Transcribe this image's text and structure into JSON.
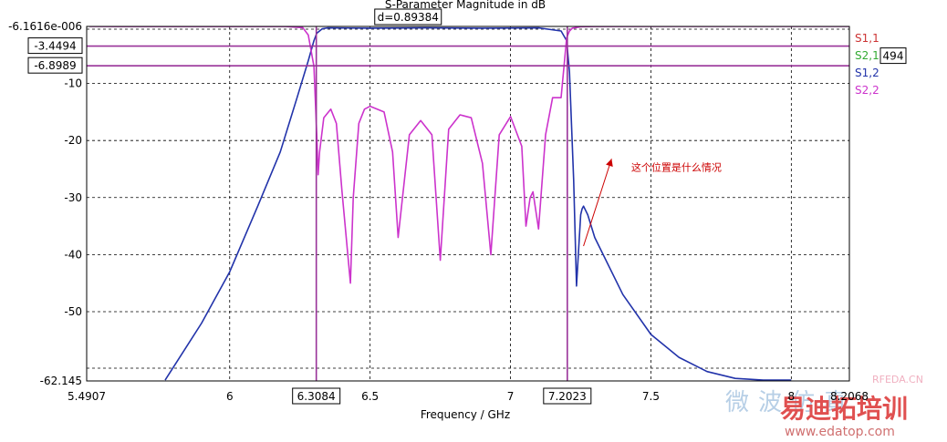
{
  "chart_data": {
    "type": "line",
    "title": "S-Parameter Magnitude in dB",
    "xlabel": "Frequency / GHz",
    "ylabel": "",
    "xlim": [
      5.4907,
      8.2068
    ],
    "ylim": [
      -62.145,
      -6.1616e-06
    ],
    "x_ticks": [
      {
        "value": 6,
        "label": "6"
      },
      {
        "value": 6.5,
        "label": "6.5"
      },
      {
        "value": 7,
        "label": "7"
      },
      {
        "value": 7.5,
        "label": "7.5"
      },
      {
        "value": 8,
        "label": "8"
      }
    ],
    "x_edge_labels": {
      "left": "5.4907",
      "right": "8.2068"
    },
    "y_ticks": [
      {
        "value": -10,
        "label": "-10"
      },
      {
        "value": -20,
        "label": "-20"
      },
      {
        "value": -30,
        "label": "-30"
      },
      {
        "value": -40,
        "label": "-40"
      },
      {
        "value": -50,
        "label": "-50"
      }
    ],
    "y_edge_labels": {
      "top": "-6.1616e-006",
      "bottom": "-62.145"
    },
    "grid": true,
    "legend_position": "right",
    "legend": [
      {
        "label": "S1,1",
        "color": "#cc3333"
      },
      {
        "label": "S2,1",
        "color": "#33aa33"
      },
      {
        "label": "S1,2",
        "color": "#2233aa"
      },
      {
        "label": "S2,2",
        "color": "#cc33cc"
      }
    ],
    "markers": {
      "vertical": [
        {
          "value": 6.3084,
          "label": "6.3084"
        },
        {
          "value": 7.2023,
          "label": "7.2023"
        }
      ],
      "horizontal": [
        {
          "value": -3.4494,
          "label": "-3.4494"
        },
        {
          "value": -6.8989,
          "label": "-6.8989"
        }
      ],
      "delta_label": "d=0.89384",
      "right_partial_label": "494",
      "color": "#993399"
    },
    "series": [
      {
        "name": "S1,2",
        "color": "#2233aa",
        "x": [
          5.77,
          5.9,
          6.0,
          6.1,
          6.18,
          6.24,
          6.28,
          6.3,
          6.31,
          6.33,
          6.35,
          6.5,
          6.7,
          6.9,
          7.1,
          7.18,
          7.2,
          7.21,
          7.225,
          7.235,
          7.245,
          7.25,
          7.255,
          7.26,
          7.275,
          7.3,
          7.4,
          7.5,
          7.6,
          7.7,
          7.8,
          7.9,
          8.0
        ],
        "values": [
          -62,
          -52,
          -43,
          -31.5,
          -22,
          -12.5,
          -6,
          -2.5,
          -1.2,
          -0.4,
          -0.25,
          -0.3,
          -0.25,
          -0.3,
          -0.25,
          -0.8,
          -2.5,
          -8,
          -27,
          -45.5,
          -37,
          -33,
          -32,
          -31.5,
          -33,
          -37,
          -47,
          -54,
          -58,
          -60.5,
          -61.7,
          -62,
          -62
        ]
      },
      {
        "name": "S2,2",
        "color": "#cc33cc",
        "x": [
          5.5,
          6.2,
          6.26,
          6.28,
          6.3,
          6.31,
          6.315,
          6.32,
          6.335,
          6.36,
          6.38,
          6.4,
          6.43,
          6.44,
          6.46,
          6.48,
          6.5,
          6.55,
          6.58,
          6.6,
          6.64,
          6.68,
          6.72,
          6.75,
          6.78,
          6.82,
          6.86,
          6.9,
          6.93,
          6.96,
          7.0,
          7.04,
          7.055,
          7.07,
          7.08,
          7.1,
          7.125,
          7.15,
          7.18,
          7.2,
          7.21,
          7.22,
          7.25,
          7.3,
          7.5,
          8.21
        ],
        "values": [
          -0.001,
          -0.01,
          -0.2,
          -1.5,
          -7,
          -19,
          -26,
          -22,
          -16,
          -14.5,
          -17,
          -29,
          -45,
          -30,
          -17,
          -14.5,
          -14,
          -15,
          -22,
          -37,
          -19,
          -16.5,
          -19,
          -41,
          -18,
          -15.5,
          -16,
          -24,
          -40,
          -19,
          -15.8,
          -21,
          -35,
          -30,
          -29,
          -35.5,
          -19,
          -12.5,
          -12.5,
          -2,
          -0.8,
          -0.3,
          -0.05,
          -0.01,
          -0.001,
          -0.001
        ]
      }
    ]
  },
  "annotation": {
    "text": "这个位置是什么情况",
    "x": 7.43,
    "y": -26,
    "arrow_to_x": 7.26,
    "arrow_to_y": -38.5
  },
  "watermark": {
    "chars": "微波仿真",
    "brand": "易迪拓培训",
    "url": "www.edatop.com",
    "site": "RFEDA.CN"
  }
}
